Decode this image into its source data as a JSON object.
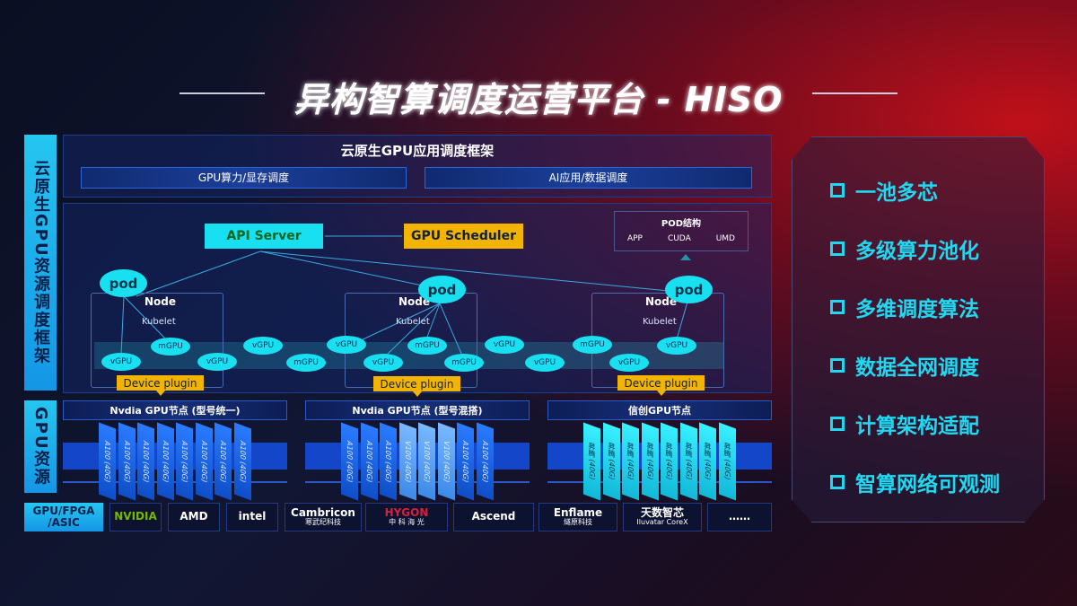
{
  "title": "异构智算调度运营平台 - HISO",
  "side_labels": {
    "top": "云原生GPU资源调度框架",
    "mid": "GPU资源",
    "bottom": "GPU/FPGA /ASIC"
  },
  "framework": {
    "title": "云原生GPU应用调度框架",
    "bars": [
      "GPU算力/显存调度",
      "AI应用/数据调度"
    ]
  },
  "api_server": "API Server",
  "gpu_scheduler": "GPU Scheduler",
  "pod_struct": {
    "title": "POD结构",
    "items": [
      "APP",
      "CUDA",
      "UMD"
    ]
  },
  "pod_label": "pod",
  "node_label": "Node",
  "kubelet_label": "Kubelet",
  "device_plugin": "Device plugin",
  "gpu_ellipses": [
    "vGPU",
    "mGPU",
    "vGPU",
    "vGPU",
    "mGPU",
    "vGPU",
    "vGPU",
    "mGPU",
    "mGPU",
    "vGPU",
    "vGPU",
    "mGPU",
    "vGPU",
    "vGPU"
  ],
  "groups": [
    {
      "title": "Nvdia GPU节点 (型号统一)",
      "cards": [
        "A100 (40G)",
        "A100 (40G)",
        "A100 (40G)",
        "A100 (40G)",
        "A100 (40G)",
        "A100 (40G)",
        "A100 (40G)",
        "A100 (40G)"
      ]
    },
    {
      "title": "Nvdia GPU节点 (型号混搭)",
      "cards": [
        "A100 (40G)",
        "A100 (40G)",
        "A100 (40G)",
        "V100 (40G)",
        "V100 (40G)",
        "V100 (40G)",
        "A100 (40G)",
        "A100 (40G)"
      ]
    },
    {
      "title": "信创GPU节点",
      "cards": [
        "昇腾 (40G)",
        "昇腾 (40G)",
        "昇腾 (40G)",
        "昇腾 (40G)",
        "昇腾 (40G)",
        "昇腾 (40G)",
        "昇腾 (40G)",
        "昇腾 (40G)"
      ]
    }
  ],
  "vendors": [
    {
      "name": "NVIDIA",
      "sub": ""
    },
    {
      "name": "AMD",
      "sub": ""
    },
    {
      "name": "intel",
      "sub": ""
    },
    {
      "name": "Cambricon",
      "sub": "寒武纪科技"
    },
    {
      "name": "HYGON",
      "sub": "中 科 海 光"
    },
    {
      "name": "Ascend",
      "sub": ""
    },
    {
      "name": "Enflame",
      "sub": "燧原科技"
    },
    {
      "name": "天数智芯",
      "sub": "Iluvatar CoreX"
    },
    {
      "name": "……",
      "sub": ""
    }
  ],
  "features": [
    "一池多芯",
    "多级算力池化",
    "多维调度算法",
    "数据全网调度",
    "计算架构适配",
    "智算网络可观测"
  ],
  "colors": {
    "cyan": "#19e0f0",
    "gold": "#f2b400",
    "blue": "#1346c8",
    "red": "#c0101a"
  }
}
